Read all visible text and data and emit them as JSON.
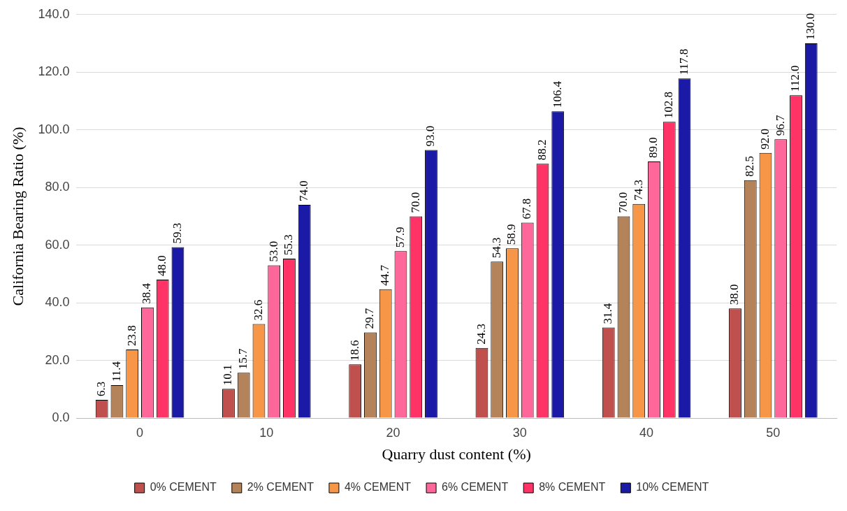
{
  "chart_data": {
    "type": "bar",
    "xlabel": "Quarry dust content (%)",
    "ylabel": "California Bearing Ratio (%)",
    "categories": [
      "0",
      "10",
      "20",
      "30",
      "40",
      "50"
    ],
    "series": [
      {
        "name": "0% CEMENT",
        "color": "#c0504d",
        "values": [
          6.3,
          10.1,
          18.6,
          24.3,
          31.4,
          38.0
        ],
        "value_labels": [
          "6.3",
          "10.1",
          "18.6",
          "24.3",
          "31.4",
          "38.0"
        ]
      },
      {
        "name": "2% CEMENT",
        "color": "#b5835a",
        "values": [
          11.4,
          15.7,
          29.7,
          54.3,
          70.0,
          82.5
        ],
        "value_labels": [
          "11.4",
          "15.7",
          "29.7",
          "54.3",
          "70.0",
          "82.5"
        ]
      },
      {
        "name": "4% CEMENT",
        "color": "#f79646",
        "values": [
          23.8,
          32.6,
          44.7,
          58.9,
          74.3,
          92.0
        ],
        "value_labels": [
          "23.8",
          "32.6",
          "44.7",
          "58.9",
          "74.3",
          "92.0"
        ]
      },
      {
        "name": "6% CEMENT",
        "color": "#ff6699",
        "values": [
          38.4,
          53.0,
          57.9,
          67.8,
          89.0,
          96.7
        ],
        "value_labels": [
          "38.4",
          "53.0",
          "57.9",
          "67.8",
          "89.0",
          "96.7"
        ]
      },
      {
        "name": "8% CEMENT",
        "color": "#ff3366",
        "values": [
          48.0,
          55.3,
          70.0,
          88.2,
          102.8,
          112.0
        ],
        "value_labels": [
          "48.0",
          "55.3",
          "70.0",
          "88.2",
          "102.8",
          "112.0"
        ]
      },
      {
        "name": "10% CEMENT",
        "color": "#1a1aa6",
        "values": [
          59.3,
          74.0,
          93.0,
          106.4,
          117.8,
          130.0
        ],
        "value_labels": [
          "59.3",
          "74.0",
          "93.0",
          "106.4",
          "117.8",
          "130.0"
        ]
      }
    ],
    "ylim": [
      0,
      140
    ],
    "yticks": [
      {
        "value": 0,
        "label": "0.0"
      },
      {
        "value": 20,
        "label": "20.0"
      },
      {
        "value": 40,
        "label": "40.0"
      },
      {
        "value": 60,
        "label": "60.0"
      },
      {
        "value": 80,
        "label": "80.0"
      },
      {
        "value": 100,
        "label": "100.0"
      },
      {
        "value": 120,
        "label": "120.0"
      },
      {
        "value": 140,
        "label": "140.0"
      }
    ],
    "grid": "y",
    "legend": "bottom"
  }
}
